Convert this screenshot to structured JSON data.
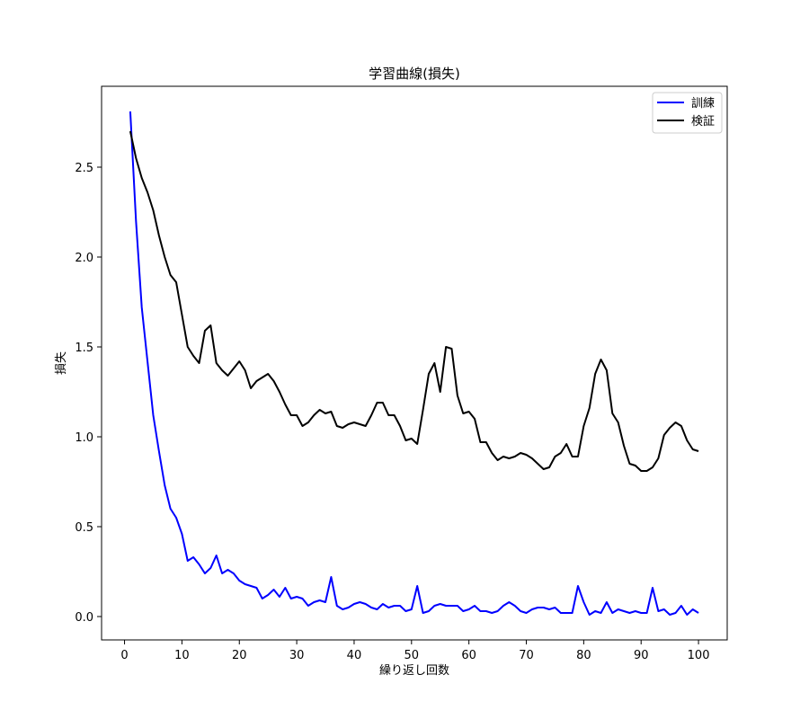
{
  "chart_data": {
    "type": "line",
    "title": "学習曲線(損失)",
    "xlabel": "繰り返し回数",
    "ylabel": "損失",
    "xlim": [
      -4,
      105
    ],
    "ylim": [
      -0.13,
      2.95
    ],
    "xticks": [
      0,
      10,
      20,
      30,
      40,
      50,
      60,
      70,
      80,
      90,
      100
    ],
    "yticks": [
      0.0,
      0.5,
      1.0,
      1.5,
      2.0,
      2.5
    ],
    "ytick_labels": [
      "0.0",
      "0.5",
      "1.0",
      "1.5",
      "2.0",
      "2.5"
    ],
    "grid": false,
    "legend_position": "top-right",
    "x": [
      1,
      2,
      3,
      4,
      5,
      6,
      7,
      8,
      9,
      10,
      11,
      12,
      13,
      14,
      15,
      16,
      17,
      18,
      19,
      20,
      21,
      22,
      23,
      24,
      25,
      26,
      27,
      28,
      29,
      30,
      31,
      32,
      33,
      34,
      35,
      36,
      37,
      38,
      39,
      40,
      41,
      42,
      43,
      44,
      45,
      46,
      47,
      48,
      49,
      50,
      51,
      52,
      53,
      54,
      55,
      56,
      57,
      58,
      59,
      60,
      61,
      62,
      63,
      64,
      65,
      66,
      67,
      68,
      69,
      70,
      71,
      72,
      73,
      74,
      75,
      76,
      77,
      78,
      79,
      80,
      81,
      82,
      83,
      84,
      85,
      86,
      87,
      88,
      89,
      90,
      91,
      92,
      93,
      94,
      95,
      96,
      97,
      98,
      99,
      100
    ],
    "series": [
      {
        "name": "訓練",
        "color": "#0000ff",
        "values": [
          2.81,
          2.2,
          1.72,
          1.42,
          1.12,
          0.92,
          0.73,
          0.6,
          0.55,
          0.46,
          0.31,
          0.33,
          0.29,
          0.24,
          0.27,
          0.34,
          0.24,
          0.26,
          0.24,
          0.2,
          0.18,
          0.17,
          0.16,
          0.1,
          0.12,
          0.15,
          0.11,
          0.16,
          0.1,
          0.11,
          0.1,
          0.06,
          0.08,
          0.09,
          0.08,
          0.22,
          0.06,
          0.04,
          0.05,
          0.07,
          0.08,
          0.07,
          0.05,
          0.04,
          0.07,
          0.05,
          0.06,
          0.06,
          0.03,
          0.04,
          0.17,
          0.02,
          0.03,
          0.06,
          0.07,
          0.06,
          0.06,
          0.06,
          0.03,
          0.04,
          0.06,
          0.03,
          0.03,
          0.02,
          0.03,
          0.06,
          0.08,
          0.06,
          0.03,
          0.02,
          0.04,
          0.05,
          0.05,
          0.04,
          0.05,
          0.02,
          0.02,
          0.02,
          0.17,
          0.08,
          0.01,
          0.03,
          0.02,
          0.08,
          0.02,
          0.04,
          0.03,
          0.02,
          0.03,
          0.02,
          0.02,
          0.16,
          0.03,
          0.04,
          0.01,
          0.02,
          0.06,
          0.01,
          0.04,
          0.02
        ]
      },
      {
        "name": "検証",
        "color": "#000000",
        "values": [
          2.7,
          2.55,
          2.44,
          2.36,
          2.26,
          2.12,
          2.0,
          1.9,
          1.86,
          1.68,
          1.5,
          1.45,
          1.41,
          1.59,
          1.62,
          1.41,
          1.37,
          1.34,
          1.38,
          1.42,
          1.37,
          1.27,
          1.31,
          1.33,
          1.35,
          1.31,
          1.25,
          1.18,
          1.12,
          1.12,
          1.06,
          1.08,
          1.12,
          1.15,
          1.13,
          1.14,
          1.06,
          1.05,
          1.07,
          1.08,
          1.07,
          1.06,
          1.12,
          1.19,
          1.19,
          1.12,
          1.12,
          1.06,
          0.98,
          0.99,
          0.96,
          1.15,
          1.35,
          1.41,
          1.25,
          1.5,
          1.49,
          1.23,
          1.13,
          1.14,
          1.1,
          0.97,
          0.97,
          0.91,
          0.87,
          0.89,
          0.88,
          0.89,
          0.91,
          0.9,
          0.88,
          0.85,
          0.82,
          0.83,
          0.89,
          0.91,
          0.96,
          0.89,
          0.89,
          1.06,
          1.16,
          1.35,
          1.43,
          1.37,
          1.13,
          1.08,
          0.95,
          0.85,
          0.84,
          0.81,
          0.81,
          0.83,
          0.88,
          1.01,
          1.05,
          1.08,
          1.06,
          0.98,
          0.93,
          0.92
        ]
      }
    ]
  }
}
